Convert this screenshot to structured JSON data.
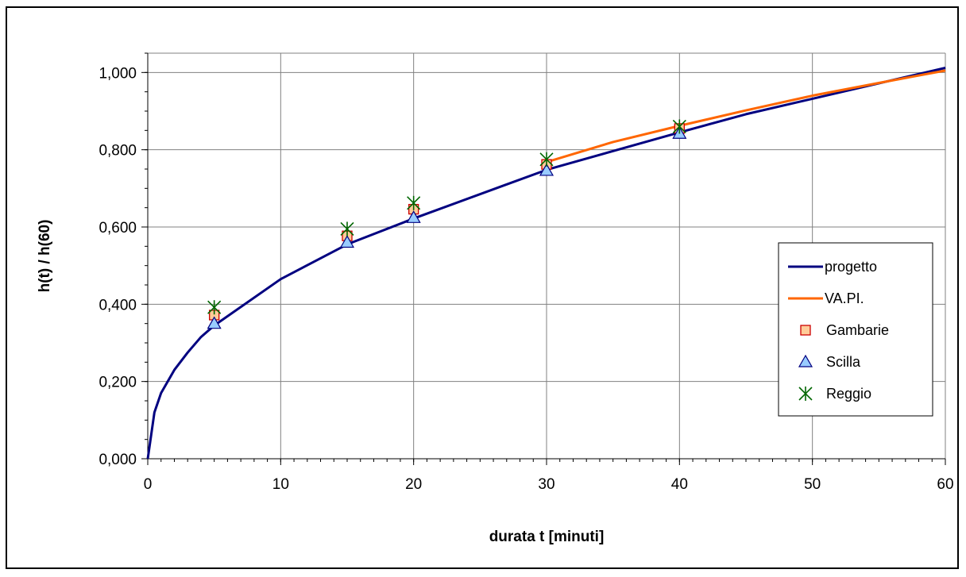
{
  "chart_data": {
    "type": "line",
    "xlabel": "durata t [minuti]",
    "ylabel": "h(t) / h(60)",
    "xlim": [
      0,
      60
    ],
    "ylim": [
      0,
      1.05
    ],
    "x_ticks": [
      0,
      10,
      20,
      30,
      40,
      50,
      60
    ],
    "x_tick_labels": [
      "0",
      "10",
      "20",
      "30",
      "40",
      "50",
      "60"
    ],
    "y_ticks": [
      0,
      0.2,
      0.4,
      0.6,
      0.8,
      1.0
    ],
    "y_tick_labels": [
      "0,000",
      "0,200",
      "0,400",
      "0,600",
      "0,800",
      "1,000"
    ],
    "grid": true,
    "legend_position": "right",
    "series": [
      {
        "name": "progetto",
        "style": "line",
        "color": "#000080",
        "x": [
          0,
          0.5,
          1,
          2,
          3,
          4,
          5,
          10,
          15,
          20,
          30,
          40,
          45,
          50,
          60
        ],
        "y": [
          0,
          0.12,
          0.17,
          0.23,
          0.275,
          0.315,
          0.345,
          0.465,
          0.555,
          0.622,
          0.748,
          0.845,
          0.892,
          0.932,
          1.012
        ]
      },
      {
        "name": "VA.PI.",
        "style": "line",
        "color": "#FF6600",
        "x": [
          30,
          35,
          40,
          45,
          50,
          55,
          60
        ],
        "y": [
          0.768,
          0.82,
          0.862,
          0.902,
          0.94,
          0.973,
          1.005
        ]
      },
      {
        "name": "Gambarie",
        "style": "marker-square",
        "color": "#FFCC99",
        "stroke": "#CC0000",
        "x": [
          5,
          15,
          20,
          30,
          40
        ],
        "y": [
          0.372,
          0.577,
          0.646,
          0.762,
          0.855
        ]
      },
      {
        "name": "Scilla",
        "style": "marker-triangle",
        "color": "#99CCFF",
        "stroke": "#000080",
        "x": [
          5,
          15,
          20,
          30,
          40
        ],
        "y": [
          0.35,
          0.56,
          0.624,
          0.746,
          0.842
        ]
      },
      {
        "name": "Reggio",
        "style": "marker-star",
        "color": "#006600",
        "x": [
          5,
          15,
          20,
          30,
          40
        ],
        "y": [
          0.392,
          0.595,
          0.662,
          0.775,
          0.86
        ]
      }
    ]
  }
}
